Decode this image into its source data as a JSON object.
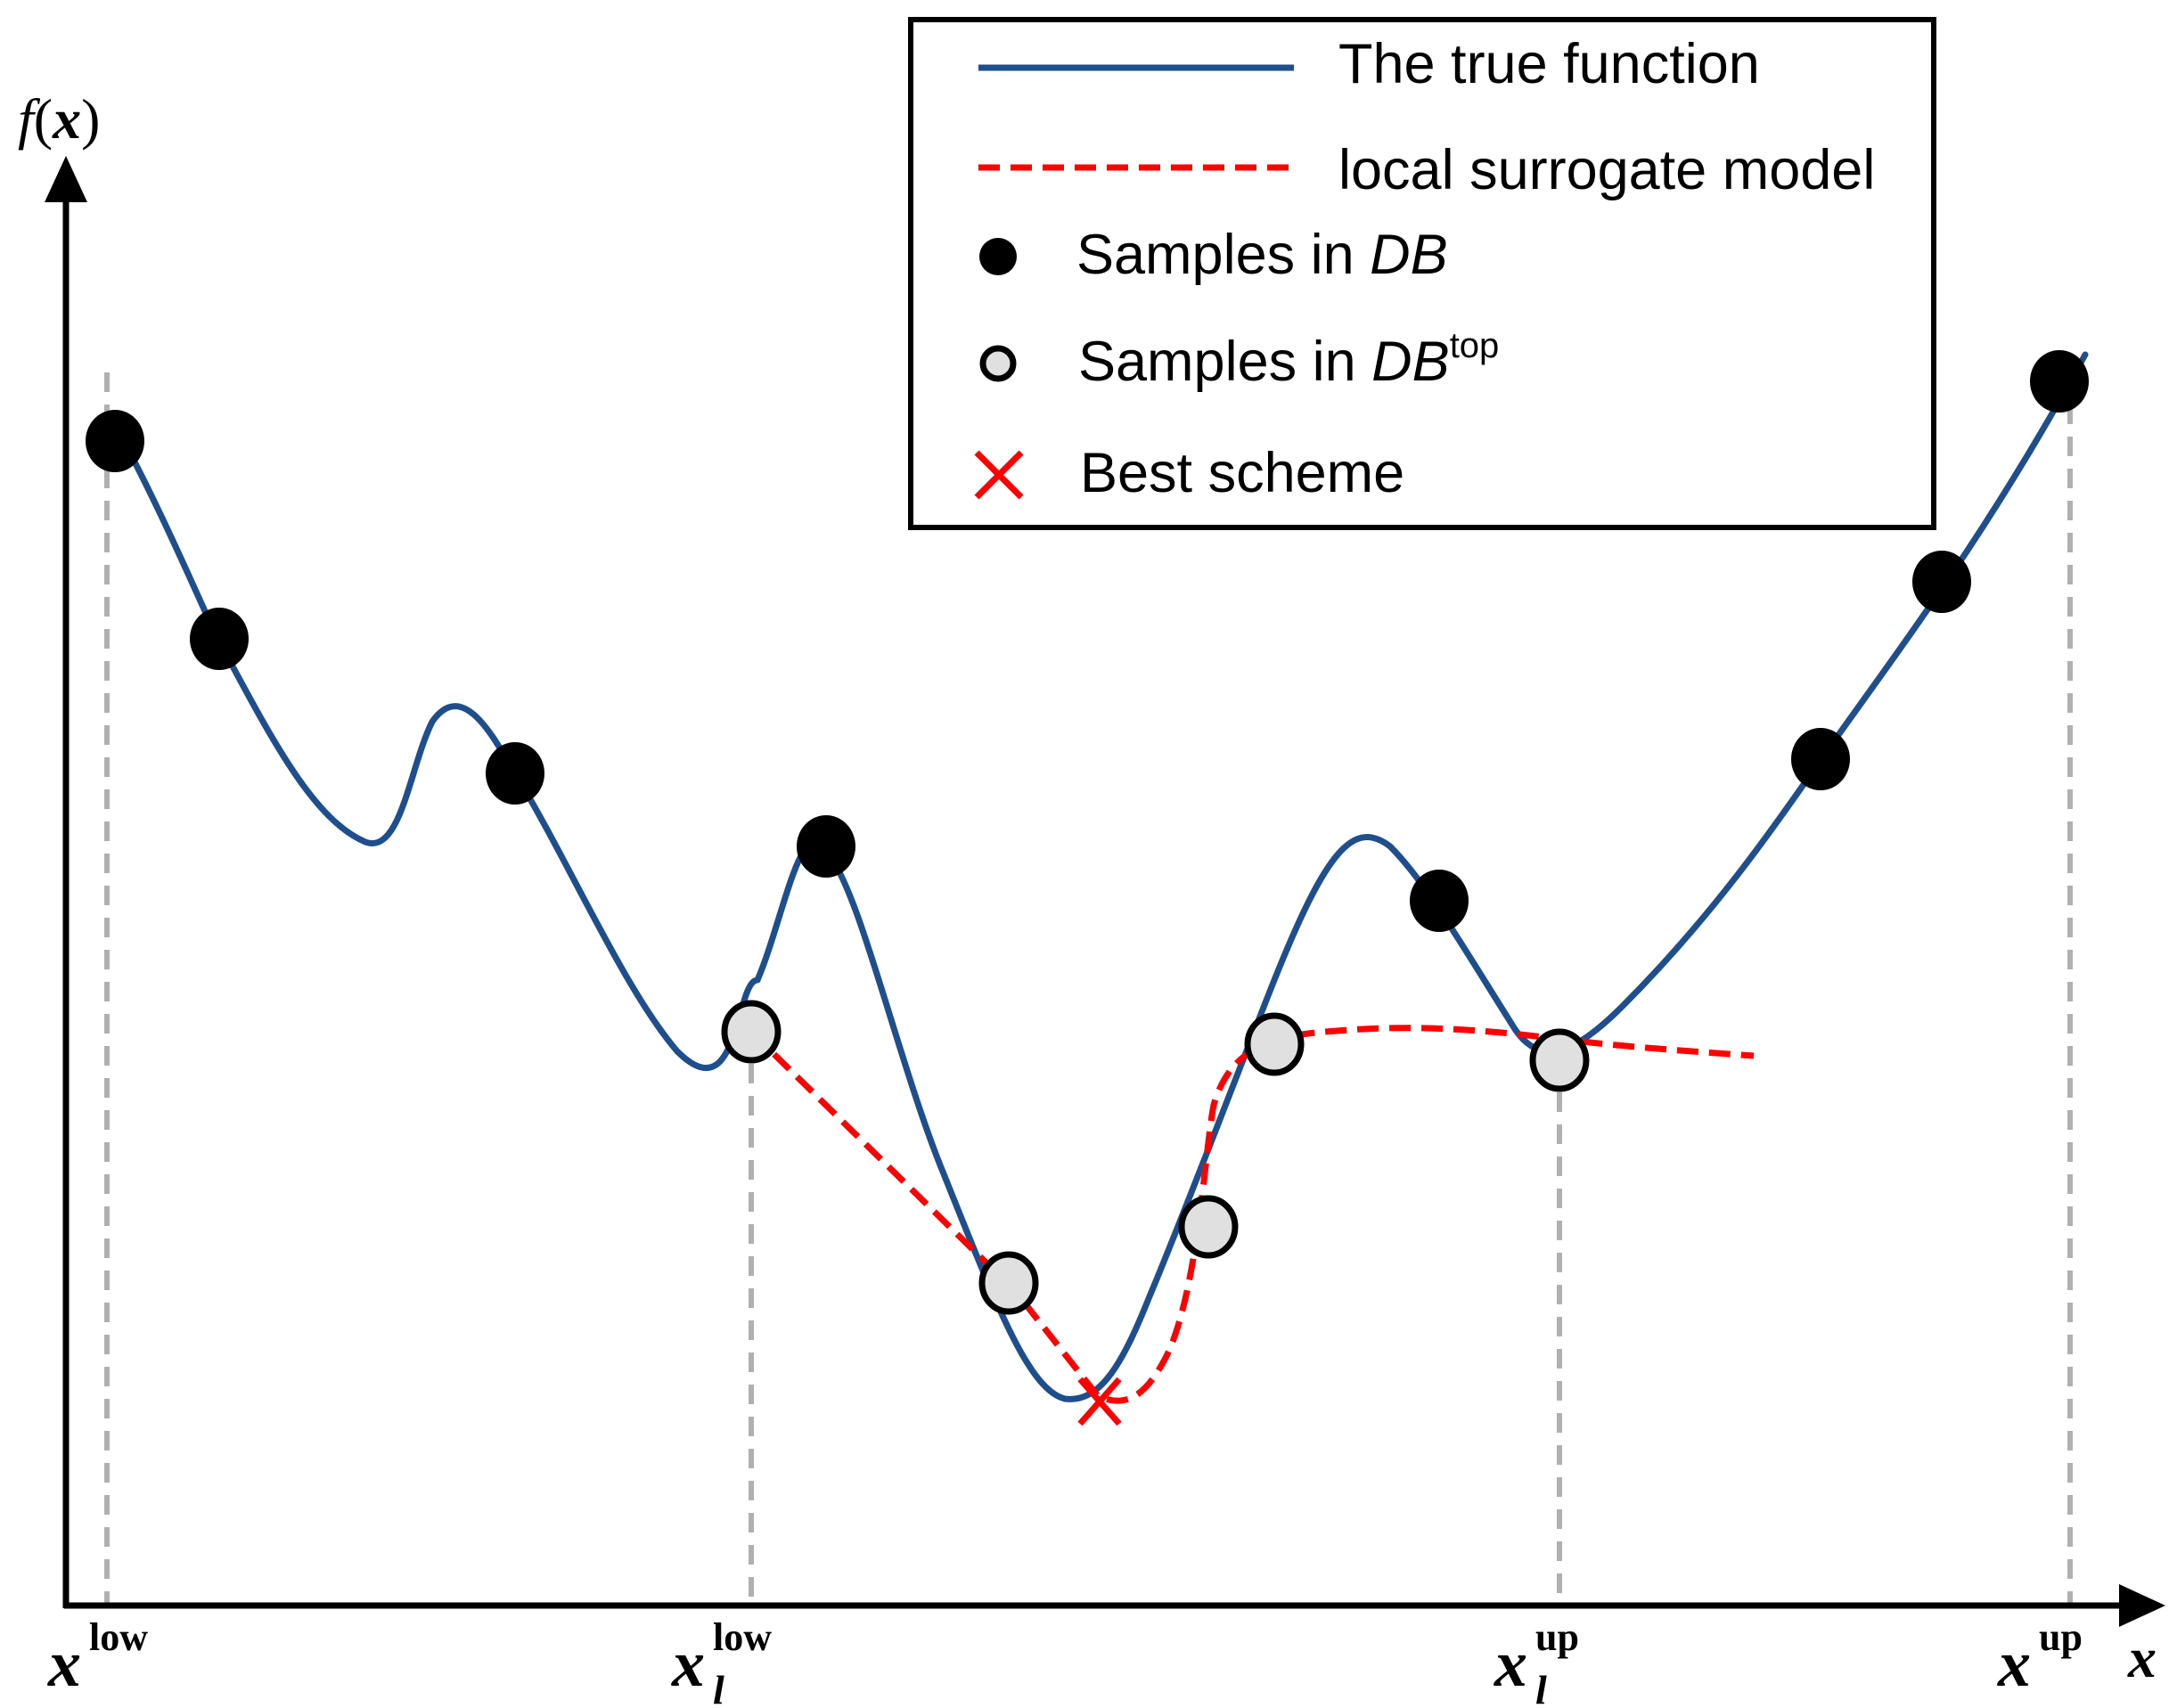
{
  "colors": {
    "true_function": "#1f4e8c",
    "surrogate": "#ff0000",
    "db_sample": "#000000",
    "db_top_fill": "#e0e0e0",
    "guide": "#b0b0b0",
    "best": "#ff0000"
  },
  "axes": {
    "y_label_f": "f",
    "y_label_var": "x",
    "x_label": "x",
    "x_ticks": [
      {
        "base": "x",
        "sup": "low",
        "sub": ""
      },
      {
        "base": "x",
        "sup": "low",
        "sub": "l"
      },
      {
        "base": "x",
        "sup": "up",
        "sub": "l"
      },
      {
        "base": "x",
        "sup": "up",
        "sub": ""
      }
    ]
  },
  "legend": {
    "true_function": "The true function",
    "surrogate": "local surrogate model",
    "db_prefix": "Samples in ",
    "db_name": "DB",
    "dbtop_prefix": "Samples in ",
    "dbtop_name": "DB",
    "dbtop_sup": "top",
    "best": "Best scheme"
  }
}
